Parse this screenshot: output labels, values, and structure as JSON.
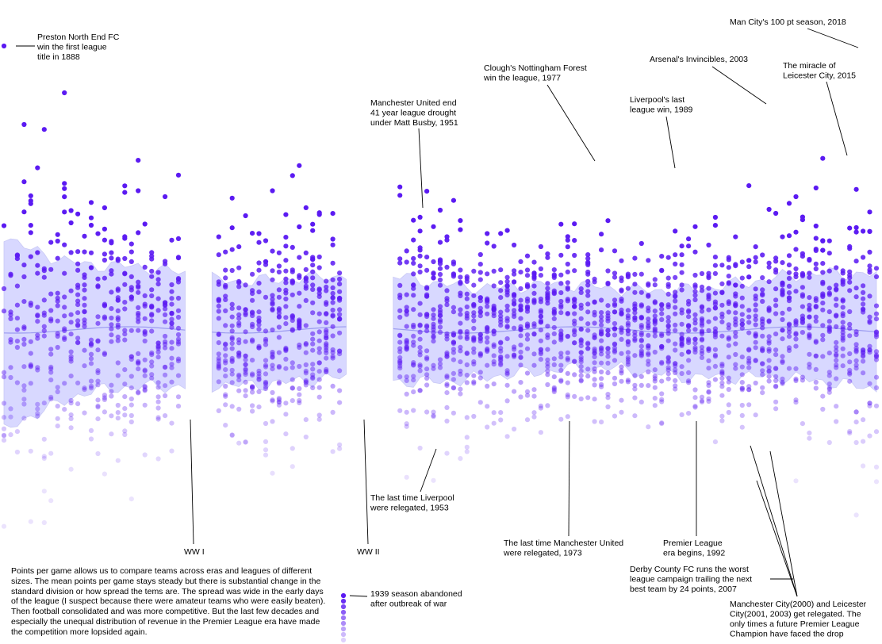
{
  "chart_data": {
    "type": "scatter",
    "title": "",
    "xlabel": "",
    "ylabel": "",
    "x_range": [
      1888,
      2018
    ],
    "y_range": [
      0,
      3
    ],
    "gaps": [
      [
        1915,
        1919
      ],
      [
        1939,
        1946
      ]
    ],
    "colors": {
      "points": "#5b1af2",
      "band": "#d8d8ff",
      "band_edge": "#c9c9f5",
      "mean_line": "#9b9bf0",
      "leader": "#000000"
    },
    "annotations": [
      {
        "id": "preston",
        "lines": [
          "Preston North End FC",
          "win the first league",
          "title in 1888"
        ]
      },
      {
        "id": "man-city-100",
        "lines": [
          "Man City's 100 pt season, 2018"
        ]
      },
      {
        "id": "forest-1977",
        "lines": [
          "Clough's Nottingham Forest",
          "win the league, 1977"
        ]
      },
      {
        "id": "invincibles",
        "lines": [
          "Arsenal's Invincibles, 2003"
        ]
      },
      {
        "id": "leicester-2015",
        "lines": [
          "The miracle of",
          "Leicester City, 2015"
        ]
      },
      {
        "id": "busby-1951",
        "lines": [
          "Manchester United end",
          "41 year league drought",
          "under Matt Busby, 1951"
        ]
      },
      {
        "id": "liverpool-1989",
        "lines": [
          "Liverpool's last",
          "league win, 1989"
        ]
      },
      {
        "id": "liverpool-rel-1953",
        "lines": [
          "The last time Liverpool",
          "were relegated, 1953"
        ]
      },
      {
        "id": "ww1",
        "lines": [
          "WW I"
        ]
      },
      {
        "id": "ww2",
        "lines": [
          "WW II"
        ]
      },
      {
        "id": "manutd-rel-1973",
        "lines": [
          "The last time Manchester United",
          "were relegated, 1973"
        ]
      },
      {
        "id": "premier-1992",
        "lines": [
          "Premier League",
          "era begins, 1992"
        ]
      },
      {
        "id": "derby-2007",
        "lines": [
          "Derby County FC runs the worst",
          "league campaign trailing the next",
          "best team by 24 points, 2007"
        ]
      },
      {
        "id": "abandoned-1939",
        "lines": [
          "1939 season abandoned",
          "after outbreak of war"
        ]
      },
      {
        "id": "relegated-champions",
        "lines": [
          "Manchester City(2000) and Leicester",
          "City(2001, 2003) get relegated. The",
          "only times a future Premier League",
          "Champion have faced the drop"
        ]
      }
    ],
    "description": "Points per game allows us to compare teams across eras and leagues of different sizes. The mean points per game stays steady but there is substantial change in the standard division or how spread the tems are. The spread was wide in the early days of the league (I suspect because there were amateur teams who were easily beaten). Then football consolidated and was more competitive. But the last few decades and especially the unequal distribution of revenue in the Premier League era have made the competition more lopsided again."
  }
}
